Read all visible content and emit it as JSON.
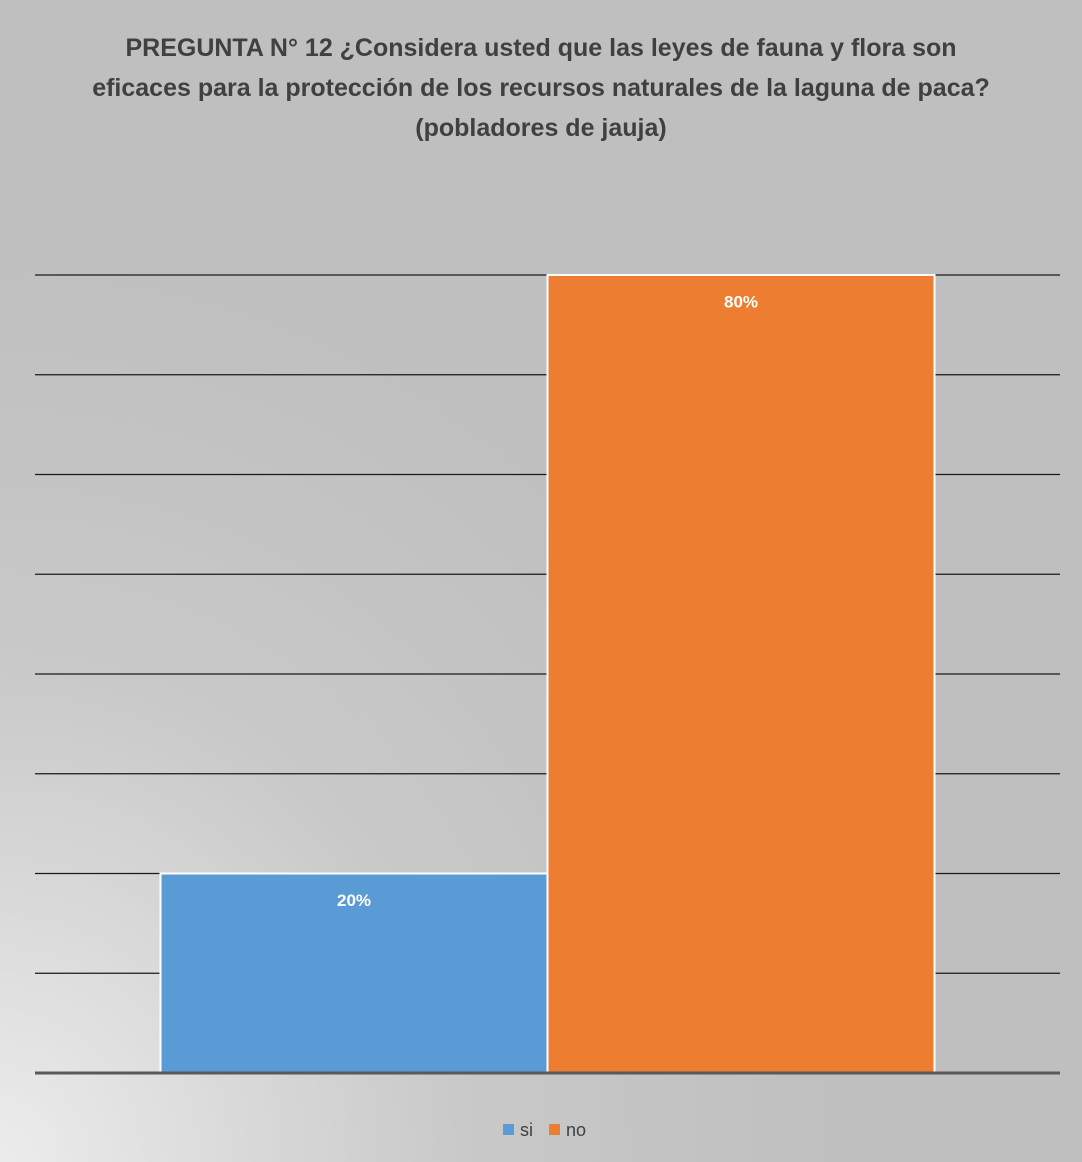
{
  "chart_data": {
    "type": "bar",
    "title": "PREGUNTA N° 12 ¿Considera usted que las leyes de fauna y flora son eficaces para la protección de los recursos naturales de la laguna de paca? (pobladores de jauja)",
    "categories": [
      null
    ],
    "series": [
      {
        "name": "si",
        "color": "#5b9bd5",
        "values": [
          20
        ],
        "value_labels": [
          "20%"
        ]
      },
      {
        "name": "no",
        "color": "#ed7d31",
        "values": [
          80
        ],
        "value_labels": [
          "80%"
        ]
      }
    ],
    "ylim": [
      0,
      80
    ],
    "yticks": [
      0,
      10,
      20,
      30,
      40,
      50,
      60,
      70,
      80
    ],
    "grid": true,
    "legend": "bottom"
  }
}
